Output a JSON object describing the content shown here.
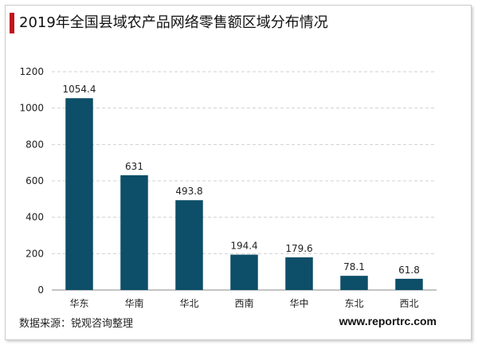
{
  "title": "2019年全国县域农产品网络零售额区域分布情况",
  "source": "数据来源：锐观咨询整理",
  "website": "www.reportrc.com",
  "colors": {
    "bar": "#0d4e68",
    "accent": "#c0161d",
    "grid": "#d0d0d0",
    "axis": "#888888"
  },
  "chart_data": {
    "type": "bar",
    "categories": [
      "华东",
      "华南",
      "华北",
      "西南",
      "华中",
      "东北",
      "西北"
    ],
    "values": [
      1054.4,
      631,
      493.8,
      194.4,
      179.6,
      78.1,
      61.8
    ],
    "value_labels": [
      "1054.4",
      "631",
      "493.8",
      "194.4",
      "179.6",
      "78.1",
      "61.8"
    ],
    "yticks": [
      "0",
      "200",
      "400",
      "600",
      "800",
      "1000",
      "1200"
    ],
    "ylim": [
      0,
      1200
    ],
    "grid": true,
    "legend": "none"
  }
}
